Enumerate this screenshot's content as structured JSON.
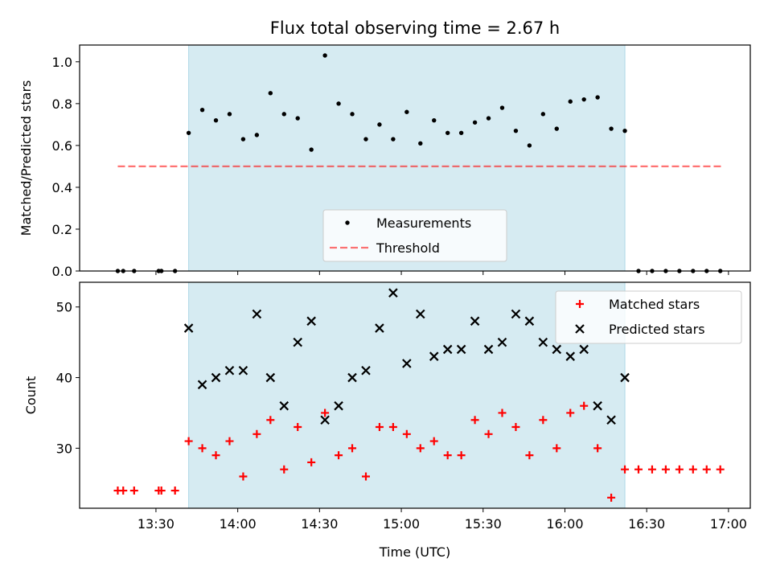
{
  "title": "Flux total observing time = 2.67 h",
  "colors": {
    "span": "#add8e6",
    "threshold": "#ff0000",
    "measurement": "#000000",
    "matched": "#ff0000",
    "predicted": "#000000"
  },
  "chart_data": [
    {
      "type": "scatter",
      "ylabel": "Matched/Predicted stars",
      "ylim": [
        0,
        1.08
      ],
      "yticks": [
        "0.0",
        "0.2",
        "0.4",
        "0.6",
        "0.8",
        "1.0"
      ],
      "xlim": [
        "13:02",
        "17:08"
      ],
      "shaded_span": [
        "13:42",
        "16:22"
      ],
      "threshold": {
        "value": 0.5,
        "x_range": [
          "13:16",
          "16:58"
        ]
      },
      "legend": {
        "position": "lower-center",
        "entries": [
          "Measurements",
          "Threshold"
        ]
      },
      "series": [
        {
          "name": "Measurements",
          "points": [
            [
              "13:16",
              0
            ],
            [
              "13:18",
              0
            ],
            [
              "13:22",
              0
            ],
            [
              "13:31",
              0
            ],
            [
              "13:32",
              0
            ],
            [
              "13:37",
              0
            ],
            [
              "13:42",
              0.66
            ],
            [
              "13:47",
              0.77
            ],
            [
              "13:52",
              0.72
            ],
            [
              "13:57",
              0.75
            ],
            [
              "14:02",
              0.63
            ],
            [
              "14:07",
              0.65
            ],
            [
              "14:12",
              0.85
            ],
            [
              "14:17",
              0.75
            ],
            [
              "14:22",
              0.73
            ],
            [
              "14:27",
              0.58
            ],
            [
              "14:32",
              1.03
            ],
            [
              "14:37",
              0.8
            ],
            [
              "14:42",
              0.75
            ],
            [
              "14:47",
              0.63
            ],
            [
              "14:52",
              0.7
            ],
            [
              "14:57",
              0.63
            ],
            [
              "15:02",
              0.76
            ],
            [
              "15:07",
              0.61
            ],
            [
              "15:12",
              0.72
            ],
            [
              "15:17",
              0.66
            ],
            [
              "15:22",
              0.66
            ],
            [
              "15:27",
              0.71
            ],
            [
              "15:32",
              0.73
            ],
            [
              "15:37",
              0.78
            ],
            [
              "15:42",
              0.67
            ],
            [
              "15:47",
              0.6
            ],
            [
              "15:52",
              0.75
            ],
            [
              "15:57",
              0.68
            ],
            [
              "16:02",
              0.81
            ],
            [
              "16:07",
              0.82
            ],
            [
              "16:12",
              0.83
            ],
            [
              "16:17",
              0.68
            ],
            [
              "16:22",
              0.67
            ],
            [
              "16:27",
              0
            ],
            [
              "16:32",
              0
            ],
            [
              "16:37",
              0
            ],
            [
              "16:42",
              0
            ],
            [
              "16:47",
              0
            ],
            [
              "16:52",
              0
            ],
            [
              "16:57",
              0
            ]
          ]
        }
      ]
    },
    {
      "type": "scatter",
      "ylabel": "Count",
      "xlabel": "Time (UTC)",
      "ylim": [
        21.5,
        53.5
      ],
      "yticks": [
        "30",
        "40",
        "50"
      ],
      "xlim": [
        "13:02",
        "17:08"
      ],
      "xticks": [
        "13:30",
        "14:00",
        "14:30",
        "15:00",
        "15:30",
        "16:00",
        "16:30",
        "17:00"
      ],
      "shaded_span": [
        "13:42",
        "16:22"
      ],
      "legend": {
        "position": "top-right",
        "entries": [
          "Matched stars",
          "Predicted stars"
        ]
      },
      "series": [
        {
          "name": "Matched stars",
          "marker": "plus",
          "points": [
            [
              "13:16",
              24
            ],
            [
              "13:18",
              24
            ],
            [
              "13:22",
              24
            ],
            [
              "13:31",
              24
            ],
            [
              "13:32",
              24
            ],
            [
              "13:37",
              24
            ],
            [
              "13:42",
              31
            ],
            [
              "13:47",
              30
            ],
            [
              "13:52",
              29
            ],
            [
              "13:57",
              31
            ],
            [
              "14:02",
              26
            ],
            [
              "14:07",
              32
            ],
            [
              "14:12",
              34
            ],
            [
              "14:17",
              27
            ],
            [
              "14:22",
              33
            ],
            [
              "14:27",
              28
            ],
            [
              "14:32",
              35
            ],
            [
              "14:37",
              29
            ],
            [
              "14:42",
              30
            ],
            [
              "14:47",
              26
            ],
            [
              "14:52",
              33
            ],
            [
              "14:57",
              33
            ],
            [
              "15:02",
              32
            ],
            [
              "15:07",
              30
            ],
            [
              "15:12",
              31
            ],
            [
              "15:17",
              29
            ],
            [
              "15:22",
              29
            ],
            [
              "15:27",
              34
            ],
            [
              "15:32",
              32
            ],
            [
              "15:37",
              35
            ],
            [
              "15:42",
              33
            ],
            [
              "15:47",
              29
            ],
            [
              "15:52",
              34
            ],
            [
              "15:57",
              30
            ],
            [
              "16:02",
              35
            ],
            [
              "16:07",
              36
            ],
            [
              "16:12",
              30
            ],
            [
              "16:17",
              23
            ],
            [
              "16:22",
              27
            ],
            [
              "16:27",
              27
            ],
            [
              "16:32",
              27
            ],
            [
              "16:37",
              27
            ],
            [
              "16:42",
              27
            ],
            [
              "16:47",
              27
            ],
            [
              "16:52",
              27
            ],
            [
              "16:57",
              27
            ]
          ]
        },
        {
          "name": "Predicted stars",
          "marker": "x",
          "points": [
            [
              "13:42",
              47
            ],
            [
              "13:47",
              39
            ],
            [
              "13:52",
              40
            ],
            [
              "13:57",
              41
            ],
            [
              "14:02",
              41
            ],
            [
              "14:07",
              49
            ],
            [
              "14:12",
              40
            ],
            [
              "14:17",
              36
            ],
            [
              "14:22",
              45
            ],
            [
              "14:27",
              48
            ],
            [
              "14:32",
              34
            ],
            [
              "14:37",
              36
            ],
            [
              "14:42",
              40
            ],
            [
              "14:47",
              41
            ],
            [
              "14:52",
              47
            ],
            [
              "14:57",
              52
            ],
            [
              "15:02",
              42
            ],
            [
              "15:07",
              49
            ],
            [
              "15:12",
              43
            ],
            [
              "15:17",
              44
            ],
            [
              "15:22",
              44
            ],
            [
              "15:27",
              48
            ],
            [
              "15:32",
              44
            ],
            [
              "15:37",
              45
            ],
            [
              "15:42",
              49
            ],
            [
              "15:47",
              48
            ],
            [
              "15:52",
              45
            ],
            [
              "15:57",
              44
            ],
            [
              "16:02",
              43
            ],
            [
              "16:07",
              44
            ],
            [
              "16:12",
              36
            ],
            [
              "16:17",
              34
            ],
            [
              "16:22",
              40
            ]
          ]
        }
      ]
    }
  ]
}
